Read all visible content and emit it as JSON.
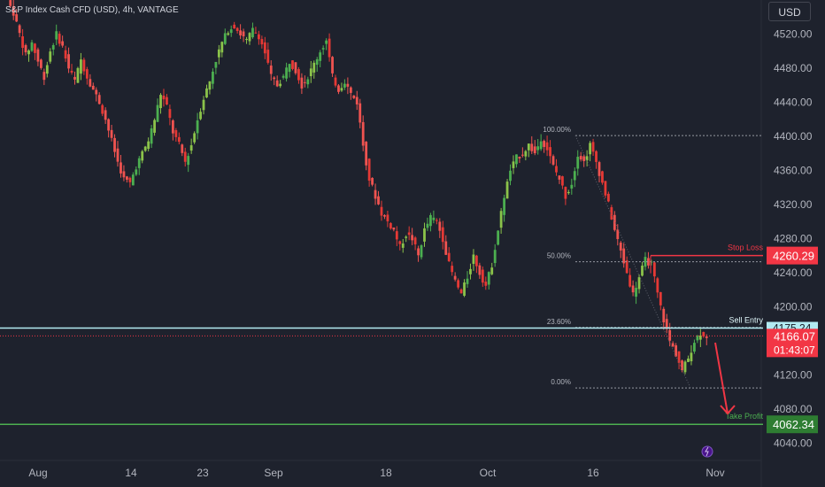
{
  "chart_title": "S&P Index Cash CFD (USD), 4h, VANTAGE",
  "currency_label": "USD",
  "colors": {
    "background": "#1e222d",
    "axis_text": "#b2b5be",
    "grid": "#2a2e39",
    "up": "#26a69a",
    "up_green": "#4caf50",
    "down": "#ef5350",
    "fib_line": "#9598a1",
    "sell_entry": "#b2ebf2",
    "stop_loss": "#f23645",
    "take_profit": "#4caf50",
    "current_price_bg": "#f23645"
  },
  "chart_data": {
    "type": "candlestick",
    "ylim": [
      4020,
      4560
    ],
    "y_ticks": [
      "4520.00",
      "4480.00",
      "4440.00",
      "4400.00",
      "4360.00",
      "4320.00",
      "4280.00",
      "4240.00",
      "4200.00",
      "4160.00",
      "4120.00",
      "4080.00",
      "4040.00"
    ],
    "x_ticks": [
      "Aug",
      "14",
      "23",
      "Sep",
      "18",
      "Oct",
      "16",
      "Nov"
    ],
    "price_path": [
      [
        "Aug",
        4560
      ],
      [
        "Aug",
        4545
      ],
      [
        "Aug",
        4520
      ],
      [
        "Aug",
        4495
      ],
      [
        "Aug",
        4510
      ],
      [
        "Aug",
        4488
      ],
      [
        "Aug",
        4470
      ],
      [
        "Aug",
        4500
      ],
      [
        "Aug",
        4520
      ],
      [
        "Aug",
        4505
      ],
      [
        "14",
        4480
      ],
      [
        "14",
        4465
      ],
      [
        "14",
        4490
      ],
      [
        "14",
        4470
      ],
      [
        "14",
        4455
      ],
      [
        "14",
        4440
      ],
      [
        "14",
        4420
      ],
      [
        "14",
        4395
      ],
      [
        "14",
        4370
      ],
      [
        "14",
        4350
      ],
      [
        "23",
        4345
      ],
      [
        "23",
        4365
      ],
      [
        "23",
        4380
      ],
      [
        "23",
        4395
      ],
      [
        "23",
        4420
      ],
      [
        "23",
        4450
      ],
      [
        "23",
        4435
      ],
      [
        "23",
        4405
      ],
      [
        "23",
        4390
      ],
      [
        "23",
        4370
      ],
      [
        "23",
        4390
      ],
      [
        "23",
        4420
      ],
      [
        "23",
        4445
      ],
      [
        "23",
        4465
      ],
      [
        "23",
        4490
      ],
      [
        "Sep",
        4510
      ],
      [
        "Sep",
        4525
      ],
      [
        "Sep",
        4530
      ],
      [
        "Sep",
        4520
      ],
      [
        "Sep",
        4512
      ],
      [
        "Sep",
        4525
      ],
      [
        "Sep",
        4518
      ],
      [
        "Sep",
        4498
      ],
      [
        "Sep",
        4470
      ],
      [
        "Sep",
        4460
      ],
      [
        "Sep",
        4470
      ],
      [
        "Sep",
        4488
      ],
      [
        "Sep",
        4478
      ],
      [
        "Sep",
        4460
      ],
      [
        "Sep",
        4470
      ],
      [
        "Sep",
        4485
      ],
      [
        "18",
        4500
      ],
      [
        "18",
        4512
      ],
      [
        "18",
        4470
      ],
      [
        "18",
        4455
      ],
      [
        "18",
        4465
      ],
      [
        "18",
        4450
      ],
      [
        "18",
        4440
      ],
      [
        "18",
        4390
      ],
      [
        "18",
        4350
      ],
      [
        "18",
        4330
      ],
      [
        "18",
        4310
      ],
      [
        "18",
        4300
      ],
      [
        "18",
        4290
      ],
      [
        "18",
        4270
      ],
      [
        "18",
        4285
      ],
      [
        "18",
        4280
      ],
      [
        "18",
        4260
      ],
      [
        "18",
        4290
      ],
      [
        "18",
        4305
      ],
      [
        "Oct",
        4300
      ],
      [
        "Oct",
        4280
      ],
      [
        "Oct",
        4250
      ],
      [
        "Oct",
        4230
      ],
      [
        "Oct",
        4215
      ],
      [
        "Oct",
        4235
      ],
      [
        "Oct",
        4260
      ],
      [
        "Oct",
        4240
      ],
      [
        "Oct",
        4225
      ],
      [
        "Oct",
        4250
      ],
      [
        "Oct",
        4290
      ],
      [
        "Oct",
        4330
      ],
      [
        "Oct",
        4360
      ],
      [
        "Oct",
        4375
      ],
      [
        "Oct",
        4380
      ],
      [
        "Oct",
        4390
      ],
      [
        "Oct",
        4380
      ],
      [
        "16",
        4398
      ],
      [
        "16",
        4385
      ],
      [
        "16",
        4365
      ],
      [
        "16",
        4350
      ],
      [
        "16",
        4330
      ],
      [
        "16",
        4345
      ],
      [
        "16",
        4380
      ],
      [
        "16",
        4370
      ],
      [
        "16",
        4390
      ],
      [
        "16",
        4370
      ],
      [
        "16",
        4345
      ],
      [
        "16",
        4320
      ],
      [
        "16",
        4290
      ],
      [
        "16",
        4265
      ],
      [
        "16",
        4240
      ],
      [
        "16",
        4215
      ],
      [
        "16",
        4235
      ],
      [
        "16",
        4255
      ],
      [
        "16",
        4250
      ],
      [
        "16",
        4215
      ],
      [
        "16",
        4185
      ],
      [
        "16",
        4160
      ],
      [
        "16",
        4145
      ],
      [
        "Nov",
        4125
      ],
      [
        "Nov",
        4140
      ],
      [
        "Nov",
        4160
      ],
      [
        "Nov",
        4170
      ],
      [
        "Nov",
        4166
      ]
    ],
    "fib_levels": [
      {
        "label": "100.00%",
        "price": 4401
      },
      {
        "label": "50.00%",
        "price": 4253
      },
      {
        "label": "23.60%",
        "price": 4176
      },
      {
        "label": "0.00%",
        "price": 4105
      }
    ],
    "stop_loss": {
      "label": "Stop Loss",
      "price_label": "4260.29",
      "price": 4260.29
    },
    "sell_entry": {
      "label": "Sell Entry",
      "price_label": "4175.24",
      "price": 4175.24
    },
    "current_price": {
      "price_label": "4166.07",
      "price": 4166.07,
      "countdown": "01:43:07"
    },
    "take_profit": {
      "label": "Take Profit",
      "price_label": "4062.34",
      "price": 4062.34
    }
  }
}
